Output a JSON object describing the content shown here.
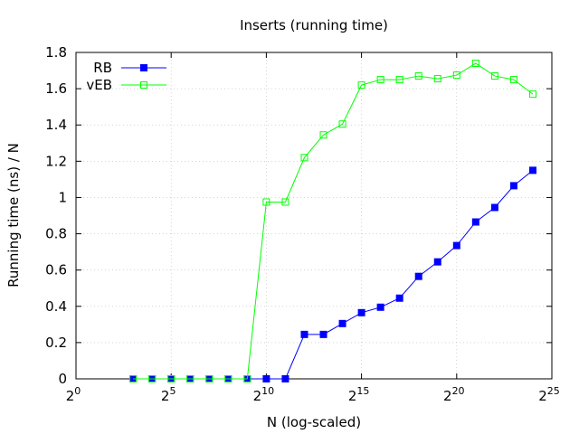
{
  "chart_data": {
    "type": "line",
    "title": "Inserts (running time)",
    "xlabel": "N (log-scaled)",
    "ylabel": "Running time (ns) / N",
    "x_scale": "log2",
    "xlim": [
      1,
      33554432
    ],
    "ylim": [
      0,
      1.8
    ],
    "grid": true,
    "legend_position": "top-left",
    "x_ticks": [
      {
        "base": "2",
        "exp": "0",
        "value": 1
      },
      {
        "base": "2",
        "exp": "5",
        "value": 32
      },
      {
        "base": "2",
        "exp": "10",
        "value": 1024
      },
      {
        "base": "2",
        "exp": "15",
        "value": 32768
      },
      {
        "base": "2",
        "exp": "20",
        "value": 1048576
      },
      {
        "base": "2",
        "exp": "25",
        "value": 33554432
      }
    ],
    "y_ticks": [
      "0",
      "0.2",
      "0.4",
      "0.6",
      "0.8",
      "1",
      "1.2",
      "1.4",
      "1.6",
      "1.8"
    ],
    "x": [
      8,
      16,
      32,
      64,
      128,
      256,
      512,
      1024,
      2048,
      4096,
      8192,
      16384,
      32768,
      65536,
      131072,
      262144,
      524288,
      1048576,
      2097152,
      4194304,
      8388608,
      16777216
    ],
    "series": [
      {
        "name": "RB",
        "color": "#0000ff",
        "marker": "filled-square",
        "values": [
          0,
          0,
          0,
          0,
          0,
          0,
          0,
          0,
          0,
          0.245,
          0.245,
          0.305,
          0.365,
          0.395,
          0.445,
          0.565,
          0.645,
          0.735,
          0.865,
          0.945,
          1.065,
          1.15
        ]
      },
      {
        "name": "vEB",
        "color": "#00ff00",
        "marker": "open-square",
        "values": [
          0,
          0,
          0,
          0,
          0,
          0,
          0,
          0.975,
          0.975,
          1.22,
          1.345,
          1.405,
          1.62,
          1.65,
          1.65,
          1.67,
          1.655,
          1.675,
          1.74,
          1.67,
          1.65,
          1.57
        ]
      }
    ]
  }
}
